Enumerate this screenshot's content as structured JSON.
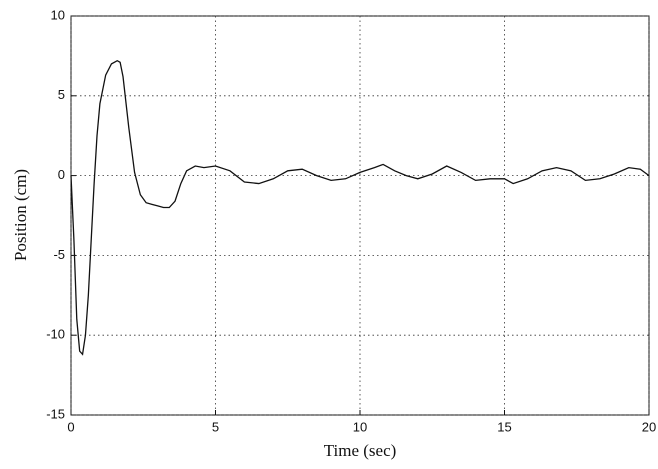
{
  "chart_data": {
    "type": "line",
    "xlabel": "Time (sec)",
    "ylabel": "Position (cm)",
    "x": [
      0,
      0.1,
      0.2,
      0.3,
      0.4,
      0.5,
      0.6,
      0.7,
      0.8,
      0.9,
      1.0,
      1.2,
      1.4,
      1.6,
      1.7,
      1.8,
      2.0,
      2.2,
      2.4,
      2.6,
      2.8,
      3.0,
      3.2,
      3.4,
      3.6,
      3.8,
      4.0,
      4.3,
      4.6,
      5.0,
      5.5,
      6.0,
      6.5,
      7.0,
      7.5,
      8.0,
      8.5,
      9.0,
      9.5,
      10.0,
      10.5,
      10.8,
      11.2,
      11.6,
      12.0,
      12.5,
      13.0,
      13.5,
      14.0,
      14.5,
      15.0,
      15.3,
      15.8,
      16.3,
      16.8,
      17.3,
      17.8,
      18.3,
      18.8,
      19.3,
      19.7,
      20.0
    ],
    "series": [
      {
        "color": "#111111",
        "values": [
          0,
          -4,
          -9,
          -11,
          -11.2,
          -10,
          -7.5,
          -4,
          -0.5,
          2.5,
          4.5,
          6.3,
          7,
          7.2,
          7.1,
          6.2,
          3,
          0.2,
          -1.2,
          -1.7,
          -1.8,
          -1.9,
          -2,
          -2,
          -1.6,
          -0.5,
          0.3,
          0.6,
          0.5,
          0.6,
          0.3,
          -0.4,
          -0.5,
          -0.2,
          0.3,
          0.4,
          0,
          -0.3,
          -0.2,
          0.2,
          0.5,
          0.7,
          0.3,
          0,
          -0.2,
          0.1,
          0.6,
          0.2,
          -0.3,
          -0.2,
          -0.2,
          -0.5,
          -0.2,
          0.3,
          0.5,
          0.3,
          -0.3,
          -0.2,
          0.1,
          0.5,
          0.4,
          0
        ]
      }
    ],
    "xlim": [
      0,
      20
    ],
    "xticks": [
      0,
      5,
      10,
      15,
      20
    ],
    "ylim": [
      -15,
      10
    ],
    "yticks": [
      -15,
      -10,
      -5,
      0,
      5,
      10
    ],
    "grid": true
  }
}
